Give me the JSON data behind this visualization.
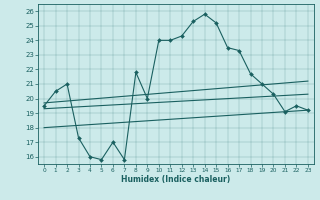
{
  "xlabel": "Humidex (Indice chaleur)",
  "background_color": "#cceaea",
  "line_color": "#1a6060",
  "xlim": [
    -0.5,
    23.5
  ],
  "ylim": [
    15.5,
    26.5
  ],
  "xticks": [
    0,
    1,
    2,
    3,
    4,
    5,
    6,
    7,
    8,
    9,
    10,
    11,
    12,
    13,
    14,
    15,
    16,
    17,
    18,
    19,
    20,
    21,
    22,
    23
  ],
  "yticks": [
    16,
    17,
    18,
    19,
    20,
    21,
    22,
    23,
    24,
    25,
    26
  ],
  "main_x": [
    0,
    1,
    2,
    3,
    4,
    5,
    6,
    7,
    8,
    9,
    10,
    11,
    12,
    13,
    14,
    15,
    16,
    17,
    18,
    19,
    20,
    21,
    22,
    23
  ],
  "main_y": [
    19.5,
    20.5,
    21.0,
    17.3,
    16.0,
    15.8,
    17.0,
    15.8,
    21.8,
    20.0,
    24.0,
    24.0,
    24.3,
    25.3,
    25.8,
    25.2,
    23.5,
    23.3,
    21.7,
    21.0,
    20.3,
    19.1,
    19.5,
    19.2
  ],
  "line1_x": [
    0,
    23
  ],
  "line1_y": [
    19.7,
    21.2
  ],
  "line2_x": [
    0,
    23
  ],
  "line2_y": [
    19.3,
    20.3
  ],
  "line3_x": [
    0,
    23
  ],
  "line3_y": [
    18.0,
    19.2
  ]
}
